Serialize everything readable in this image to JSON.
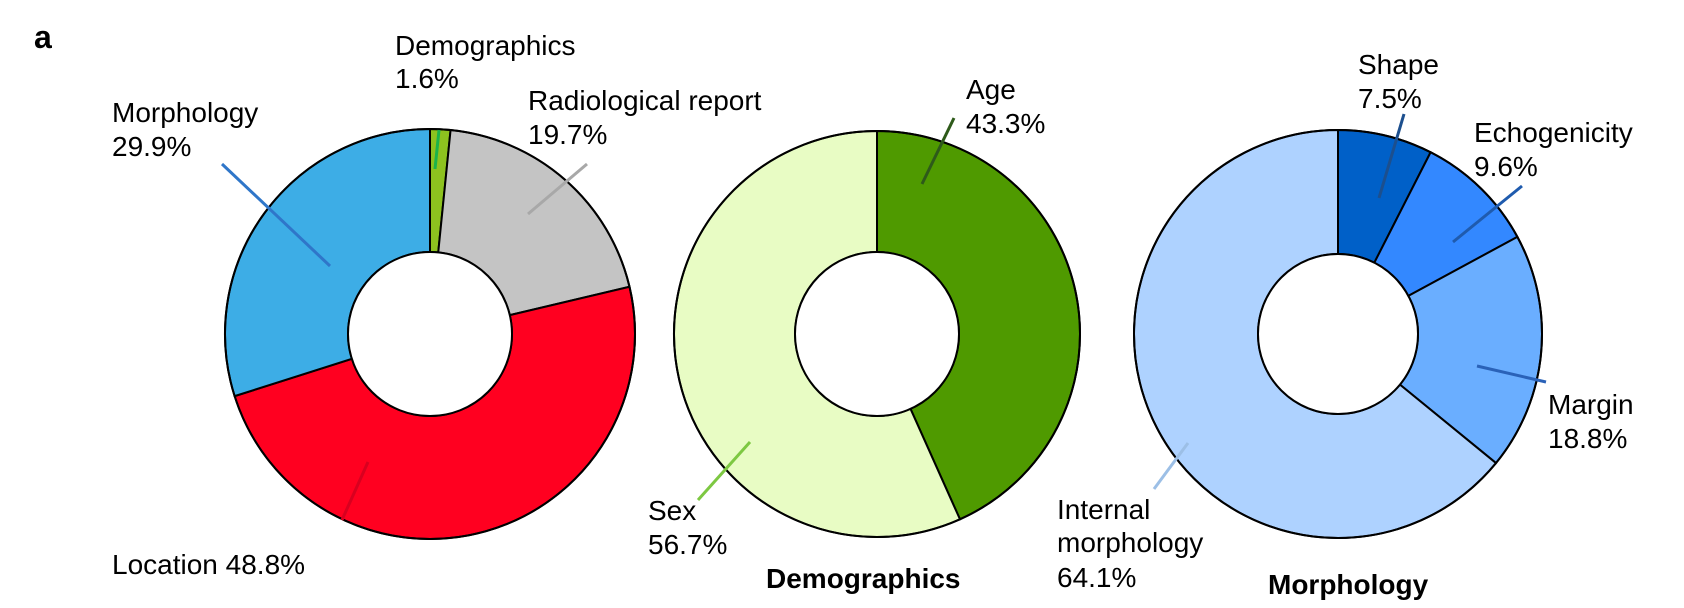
{
  "panel_label": "a",
  "chart_data": [
    {
      "type": "pie",
      "title": "",
      "donut": true,
      "categories": [
        "Demographics",
        "Radiological report",
        "Location",
        "Morphology"
      ],
      "values": [
        1.6,
        19.7,
        48.8,
        29.9
      ],
      "display": [
        "1.6%",
        "19.7%",
        "48.8%",
        "29.9%"
      ],
      "colors": [
        "#8DC21F",
        "#C4C4C4",
        "#FF0020",
        "#3DADE6"
      ],
      "leader_colors": [
        "#1DB34A",
        "#A8A8A8",
        "#D8001F",
        "#2F76C9"
      ]
    },
    {
      "type": "pie",
      "title": "Demographics",
      "donut": true,
      "categories": [
        "Age",
        "Sex"
      ],
      "values": [
        43.3,
        56.7
      ],
      "display": [
        "43.3%",
        "56.7%"
      ],
      "colors": [
        "#4F9A00",
        "#E8FCC4"
      ],
      "leader_colors": [
        "#2E5A1A",
        "#7DC842"
      ]
    },
    {
      "type": "pie",
      "title": "Morphology",
      "donut": true,
      "categories": [
        "Shape",
        "Echogenicity",
        "Margin",
        "Internal morphology"
      ],
      "values": [
        7.5,
        9.6,
        18.8,
        64.1
      ],
      "display": [
        "7.5%",
        "9.6%",
        "18.8%",
        "64.1%"
      ],
      "colors": [
        "#0060C8",
        "#3388FF",
        "#6AAEFF",
        "#AED2FF"
      ],
      "leader_colors": [
        "#1C4F8E",
        "#1F5BAE",
        "#2A62B8",
        "#9CBFE6"
      ]
    }
  ]
}
